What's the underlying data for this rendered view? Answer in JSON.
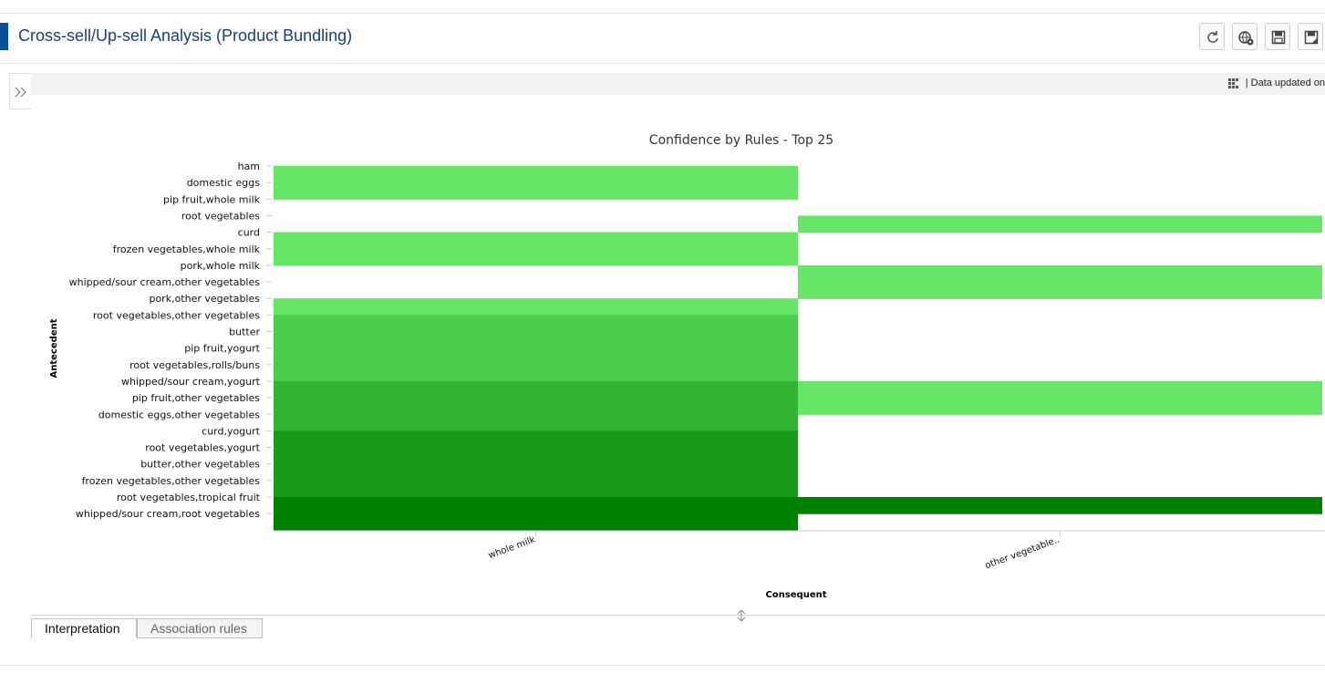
{
  "header": {
    "title": "Cross-sell/Up-sell Analysis (Product Bundling)",
    "accent_color": "#0a4f9e",
    "toolbar": [
      {
        "icon": "refresh-icon"
      },
      {
        "icon": "globe-settings-icon"
      },
      {
        "icon": "save-icon"
      },
      {
        "icon": "save-as-icon"
      }
    ]
  },
  "info_bar": {
    "separator": "|",
    "text": "Data updated on"
  },
  "chart_data": {
    "type": "heatmap",
    "title": "Confidence by Rules - Top 25",
    "xlabel": "Consequent",
    "ylabel": "Antecedent",
    "x": [
      "whole milk",
      "other vegetable.."
    ],
    "y": [
      "ham",
      "domestic eggs",
      "pip fruit,whole milk",
      "root vegetables",
      "curd",
      "frozen vegetables,whole milk",
      "pork,whole milk",
      "whipped/sour cream,other vegetables",
      "pork,other vegetables",
      "root vegetables,other vegetables",
      "butter",
      "pip fruit,yogurt",
      "root vegetables,rolls/buns",
      "whipped/sour cream,yogurt",
      "pip fruit,other vegetables",
      "domestic eggs,other vegetables",
      "curd,yogurt",
      "root vegetables,yogurt",
      "butter,other vegetables",
      "frozen vegetables,other vegetables",
      "root vegetables,tropical fruit",
      "whipped/sour cream,root vegetables"
    ],
    "cells": [
      {
        "x": "whole milk",
        "y": "ham",
        "level": 1
      },
      {
        "x": "whole milk",
        "y": "domestic eggs",
        "level": 1
      },
      {
        "x": "other vegetable..",
        "y": "root vegetables",
        "level": 1
      },
      {
        "x": "whole milk",
        "y": "curd",
        "level": 1
      },
      {
        "x": "whole milk",
        "y": "frozen vegetables,whole milk",
        "level": 1
      },
      {
        "x": "other vegetable..",
        "y": "pork,whole milk",
        "level": 1
      },
      {
        "x": "other vegetable..",
        "y": "whipped/sour cream,other vegetables",
        "level": 1
      },
      {
        "x": "whole milk",
        "y": "pork,other vegetables",
        "level": 1
      },
      {
        "x": "whole milk",
        "y": "root vegetables,other vegetables",
        "level": 2
      },
      {
        "x": "whole milk",
        "y": "butter",
        "level": 2
      },
      {
        "x": "whole milk",
        "y": "pip fruit,yogurt",
        "level": 2
      },
      {
        "x": "whole milk",
        "y": "root vegetables,rolls/buns",
        "level": 2
      },
      {
        "x": "whole milk",
        "y": "whipped/sour cream,yogurt",
        "level": 3
      },
      {
        "x": "other vegetable..",
        "y": "whipped/sour cream,yogurt",
        "level": 1
      },
      {
        "x": "whole milk",
        "y": "pip fruit,other vegetables",
        "level": 3
      },
      {
        "x": "other vegetable..",
        "y": "pip fruit,other vegetables",
        "level": 1
      },
      {
        "x": "whole milk",
        "y": "domestic eggs,other vegetables",
        "level": 3
      },
      {
        "x": "whole milk",
        "y": "curd,yogurt",
        "level": 4
      },
      {
        "x": "whole milk",
        "y": "root vegetables,yogurt",
        "level": 4
      },
      {
        "x": "whole milk",
        "y": "butter,other vegetables",
        "level": 4
      },
      {
        "x": "whole milk",
        "y": "frozen vegetables,other vegetables",
        "level": 4
      },
      {
        "x": "whole milk",
        "y": "root vegetables,tropical fruit",
        "level": 5
      },
      {
        "x": "other vegetable..",
        "y": "root vegetables,tropical fruit",
        "level": 5
      },
      {
        "x": "whole milk",
        "y": "whipped/sour cream,root vegetables",
        "level": 5
      }
    ],
    "colors": [
      "#ffffff",
      "#66e566",
      "#4ccc4c",
      "#33b333",
      "#1a9a1a",
      "#008000"
    ],
    "legend": "none",
    "grid": false
  },
  "tabs": [
    {
      "label": "Interpretation",
      "active": true
    },
    {
      "label": "Association rules",
      "active": false
    }
  ]
}
